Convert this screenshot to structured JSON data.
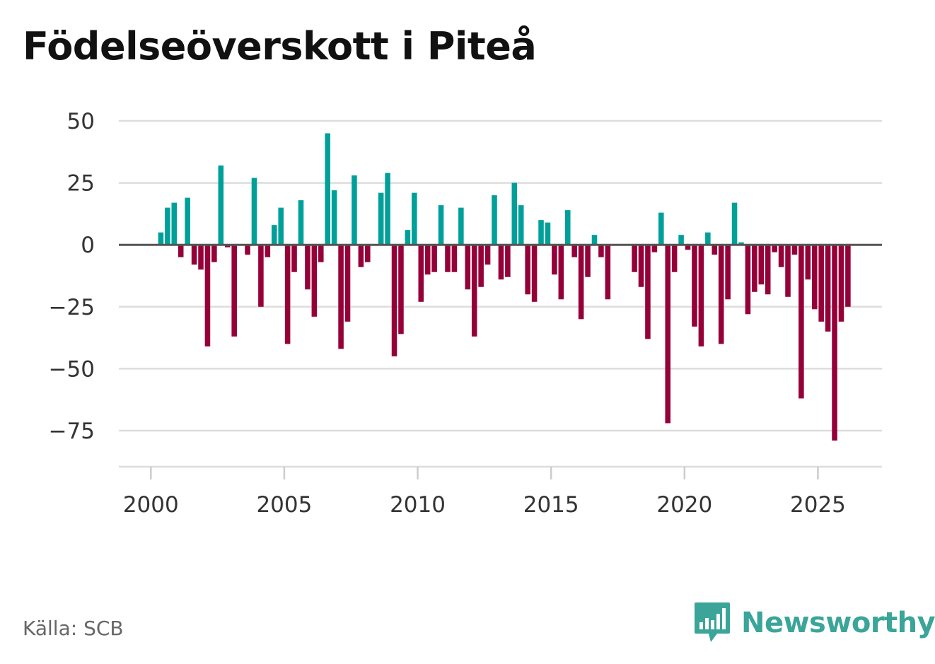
{
  "colors": {
    "positive": "#00a09a",
    "negative": "#960039",
    "grid": "#dddddd",
    "zero_line": "#555555",
    "brand": "#3aa598"
  },
  "footer": {
    "source": "Källa: SCB",
    "brand": "Newsworthy",
    "brand_icon": "bar-chart-speech-bubble-icon"
  },
  "chart_data": {
    "type": "bar",
    "title": "Födelseöverskott i Piteå",
    "xlabel": "",
    "ylabel": "",
    "ylim": [
      -87,
      50
    ],
    "xlim": [
      1998.8,
      2027.4
    ],
    "grid": true,
    "y_ticks": [
      50,
      25,
      0,
      -25,
      -50,
      -75
    ],
    "y_tick_labels": [
      "50",
      "25",
      "0",
      "−25",
      "−50",
      "−75"
    ],
    "x_ticks": [
      2000,
      2005,
      2010,
      2015,
      2020,
      2025
    ],
    "x_tick_labels": [
      "2000",
      "2005",
      "2010",
      "2015",
      "2020",
      "2025"
    ],
    "frequency": "quarterly",
    "start": 2000.0,
    "step": 0.25,
    "values": [
      0,
      5,
      15,
      17,
      -5,
      19,
      -8,
      -10,
      -41,
      -7,
      32,
      -1,
      -37,
      0,
      -4,
      27,
      -25,
      -5,
      8,
      15,
      -40,
      -11,
      18,
      -18,
      -29,
      -7,
      45,
      22,
      -42,
      -31,
      28,
      -9,
      -7,
      0,
      21,
      29,
      -45,
      -36,
      6,
      21,
      -23,
      -12,
      -11,
      16,
      -11,
      -11,
      15,
      -18,
      -37,
      -17,
      -8,
      20,
      -14,
      -13,
      25,
      16,
      -20,
      -23,
      10,
      9,
      -12,
      -22,
      14,
      -5,
      -30,
      -13,
      4,
      -5,
      -22,
      0,
      0,
      0,
      -11,
      -17,
      -38,
      -3,
      13,
      -72,
      -11,
      4,
      -2,
      -33,
      -41,
      5,
      -4,
      -40,
      -22,
      17,
      1,
      -28,
      -19,
      -16,
      -20,
      -3,
      -9,
      -21,
      -4,
      -62,
      -14,
      -26,
      -31,
      -35,
      -79,
      -31,
      -25
    ]
  }
}
